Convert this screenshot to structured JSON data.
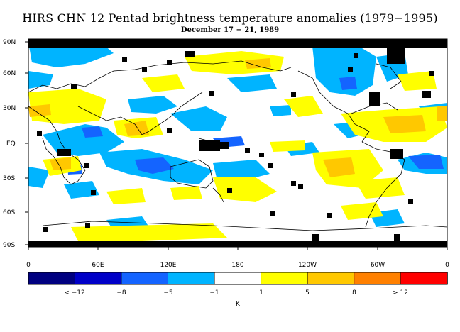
{
  "title": "HIRS CHN 12 Pentad brightness temperature anomalies (1979−1995)",
  "subtitle": "December 17 − 21, 1989",
  "lat_labels": [
    "90N",
    "60N",
    "30N",
    "EQ",
    "30S",
    "60S",
    "90S"
  ],
  "lon_labels": [
    "0",
    "60E",
    "120E",
    "180",
    "120W",
    "60W",
    "0"
  ],
  "colorbar": {
    "colors": [
      "#000080",
      "#0000c8",
      "#1464ff",
      "#00b4ff",
      "#ffffff",
      "#ffff00",
      "#ffc800",
      "#ff8000",
      "#ff0000"
    ],
    "tick_labels": [
      "< −12",
      "−8",
      "−5",
      "−1",
      "1",
      "5",
      "8",
      "> 12"
    ],
    "unit": "K"
  },
  "legend_colors": {
    "missing": "#000000",
    "coast": "#000000"
  }
}
